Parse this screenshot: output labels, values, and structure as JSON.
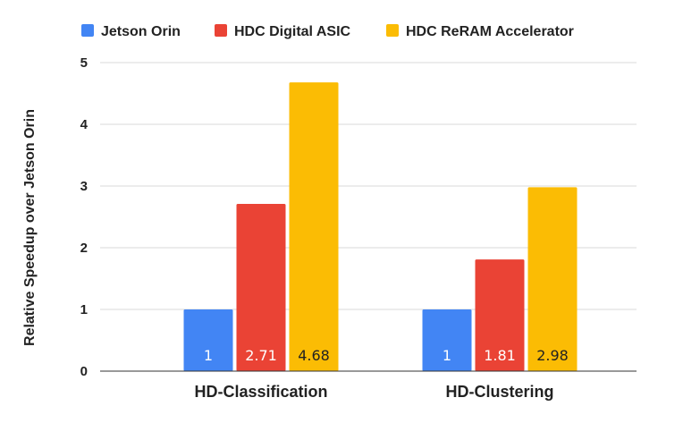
{
  "chart_data": {
    "type": "bar",
    "categories": [
      "HD-Classification",
      "HD-Clustering"
    ],
    "series": [
      {
        "name": "Jetson Orin",
        "values": [
          1,
          1
        ],
        "labels": [
          "1",
          "1"
        ],
        "color": "#4285F4",
        "label_color": "#ffffff"
      },
      {
        "name": "HDC Digital ASIC",
        "values": [
          2.71,
          1.81
        ],
        "labels": [
          "2.71",
          "1.81"
        ],
        "color": "#EA4335",
        "label_color": "#ffffff"
      },
      {
        "name": "HDC ReRAM Accelerator",
        "values": [
          4.68,
          2.98
        ],
        "labels": [
          "4.68",
          "2.98"
        ],
        "color": "#FBBC04",
        "label_color": "#222222"
      }
    ],
    "title": "",
    "xlabel": "",
    "ylabel": "Relative Speedup over Jetson Orin",
    "ylim": [
      0,
      5
    ],
    "yticks": [
      "0",
      "1",
      "2",
      "3",
      "4",
      "5"
    ],
    "grid": true,
    "legend_position": "top-left",
    "grid_color": "#d9d9d9",
    "axis_color": "#333333"
  }
}
